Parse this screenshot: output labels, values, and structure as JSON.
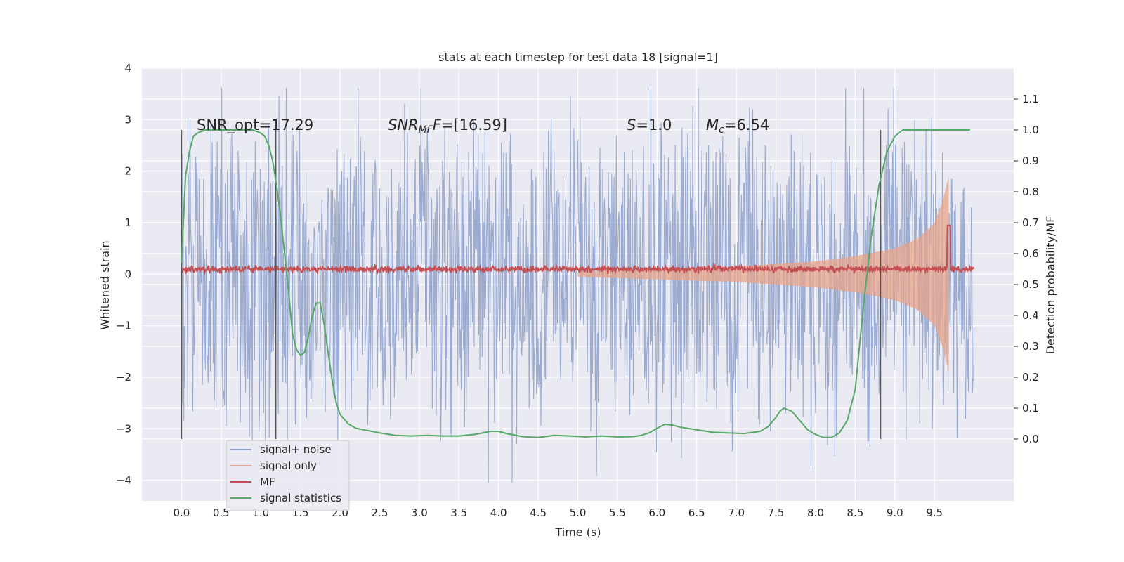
{
  "chart_data": {
    "type": "line",
    "title": "stats at each timestep for test data 18 [signal=1]",
    "xlabel": "Time (s)",
    "ylabel": "Whitened strain",
    "ylabel_right": "Detection probability/MF",
    "xlim": [
      -0.5,
      10.5
    ],
    "ylim": [
      -4.4,
      4
    ],
    "ylim_right": [
      -0.2,
      1.2
    ],
    "x_ticks": [
      "0.0",
      "0.5",
      "1.0",
      "1.5",
      "2.0",
      "2.5",
      "3.0",
      "3.5",
      "4.0",
      "4.5",
      "5.0",
      "5.5",
      "6.0",
      "6.5",
      "7.0",
      "7.5",
      "8.0",
      "8.5",
      "9.0",
      "9.5"
    ],
    "y_ticks": [
      "−4",
      "−3",
      "−2",
      "−1",
      "0",
      "1",
      "2",
      "3",
      "4"
    ],
    "y_ticks_right": [
      "0.0",
      "0.1",
      "0.2",
      "0.3",
      "0.4",
      "0.5",
      "0.6",
      "0.7",
      "0.8",
      "0.9",
      "1.0",
      "1.1"
    ],
    "grid": true,
    "legend_position": "lower-left",
    "annotations": {
      "snr_opt": "SNR_opt=17.29",
      "snr_mf_base": "SNR",
      "snr_mf_sub": "MF",
      "snr_mf_value": "=[16.59]",
      "s_base": "S",
      "s_value": "=1.0",
      "mc_base": "M",
      "mc_sub": "c",
      "mc_value": "=6.54"
    },
    "vlines_x": [
      0.0,
      1.19,
      8.82
    ],
    "series": [
      {
        "name": "signal+ noise",
        "color": "#8da0cb",
        "style": "dense noise, amplitude approx ±1.6 (peaks to ±3.6), t from 0 to 10",
        "amplitude_profile": [
          [
            0,
            1.6
          ],
          [
            10,
            1.6
          ]
        ]
      },
      {
        "name": "signal only",
        "color": "#e8a48a",
        "style": "chirp envelope growing until merger",
        "envelope": [
          [
            5.0,
            0.05
          ],
          [
            6.0,
            0.1
          ],
          [
            7.0,
            0.15
          ],
          [
            8.0,
            0.25
          ],
          [
            8.5,
            0.35
          ],
          [
            9.0,
            0.5
          ],
          [
            9.3,
            0.7
          ],
          [
            9.5,
            1.0
          ],
          [
            9.6,
            1.4
          ],
          [
            9.68,
            1.9
          ],
          [
            9.69,
            0
          ]
        ]
      },
      {
        "name": "MF",
        "color": "#c44e52",
        "baseline": 0.1,
        "peak": [
          9.68,
          0.95
        ]
      },
      {
        "name": "signal statistics",
        "color": "#55a868",
        "axis": "right",
        "x": [
          0.0,
          0.05,
          0.1,
          0.15,
          0.2,
          0.3,
          0.5,
          0.7,
          0.9,
          1.0,
          1.05,
          1.1,
          1.15,
          1.2,
          1.25,
          1.3,
          1.35,
          1.4,
          1.45,
          1.5,
          1.55,
          1.6,
          1.65,
          1.7,
          1.75,
          1.8,
          1.85,
          1.9,
          1.95,
          2.0,
          2.1,
          2.2,
          2.3,
          2.5,
          2.7,
          2.9,
          3.1,
          3.3,
          3.5,
          3.7,
          3.9,
          4.0,
          4.1,
          4.3,
          4.5,
          4.7,
          4.9,
          5.1,
          5.3,
          5.5,
          5.7,
          5.8,
          5.9,
          6.0,
          6.1,
          6.2,
          6.3,
          6.5,
          6.7,
          6.9,
          7.1,
          7.3,
          7.4,
          7.5,
          7.55,
          7.6,
          7.7,
          7.8,
          7.9,
          8.0,
          8.1,
          8.2,
          8.3,
          8.4,
          8.5,
          8.6,
          8.7,
          8.8,
          8.9,
          9.0,
          9.1,
          9.3,
          9.5,
          9.7,
          9.95
        ],
        "y": [
          0.57,
          0.85,
          0.93,
          0.98,
          0.99,
          1.0,
          1.0,
          1.0,
          1.0,
          0.99,
          0.98,
          0.95,
          0.9,
          0.82,
          0.72,
          0.6,
          0.48,
          0.34,
          0.29,
          0.27,
          0.28,
          0.33,
          0.4,
          0.44,
          0.44,
          0.37,
          0.28,
          0.19,
          0.12,
          0.08,
          0.05,
          0.035,
          0.03,
          0.02,
          0.012,
          0.01,
          0.012,
          0.01,
          0.01,
          0.015,
          0.025,
          0.025,
          0.018,
          0.008,
          0.005,
          0.012,
          0.01,
          0.007,
          0.01,
          0.007,
          0.008,
          0.012,
          0.02,
          0.035,
          0.048,
          0.045,
          0.038,
          0.03,
          0.022,
          0.02,
          0.018,
          0.025,
          0.04,
          0.07,
          0.09,
          0.1,
          0.09,
          0.06,
          0.03,
          0.015,
          0.005,
          0.005,
          0.02,
          0.06,
          0.16,
          0.42,
          0.65,
          0.82,
          0.93,
          0.98,
          1.0,
          1.0,
          1.0,
          1.0,
          1.0
        ]
      }
    ]
  }
}
